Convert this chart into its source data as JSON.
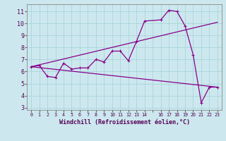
{
  "xlabel": "Windchill (Refroidissement éolien,°C)",
  "background_color": "#cce8ee",
  "grid_color": "#aad4dd",
  "line_color": "#880088",
  "xlim": [
    -0.5,
    23.5
  ],
  "ylim": [
    2.8,
    11.6
  ],
  "yticks": [
    3,
    4,
    5,
    6,
    7,
    8,
    9,
    10,
    11
  ],
  "xtick_labels": [
    "0",
    "1",
    "2",
    "3",
    "4",
    "5",
    "6",
    "7",
    "8",
    "9",
    "10",
    "11",
    "12",
    "13",
    "14",
    "",
    "16",
    "17",
    "18",
    "19",
    "20",
    "21",
    "22",
    "23"
  ],
  "line1_x": [
    0,
    1,
    2,
    3,
    4,
    5,
    6,
    7,
    8,
    9,
    10,
    11,
    12,
    13,
    14,
    16,
    17,
    18,
    19,
    20,
    21,
    22,
    23
  ],
  "line1_y": [
    6.4,
    6.5,
    5.6,
    5.5,
    6.7,
    6.2,
    6.3,
    6.3,
    7.0,
    6.8,
    7.7,
    7.7,
    6.9,
    8.5,
    10.2,
    10.3,
    11.1,
    11.0,
    9.8,
    7.4,
    3.4,
    4.7,
    4.7
  ],
  "line2_x": [
    0,
    23
  ],
  "line2_y": [
    6.4,
    10.1
  ],
  "line3_x": [
    0,
    23
  ],
  "line3_y": [
    6.4,
    4.7
  ]
}
